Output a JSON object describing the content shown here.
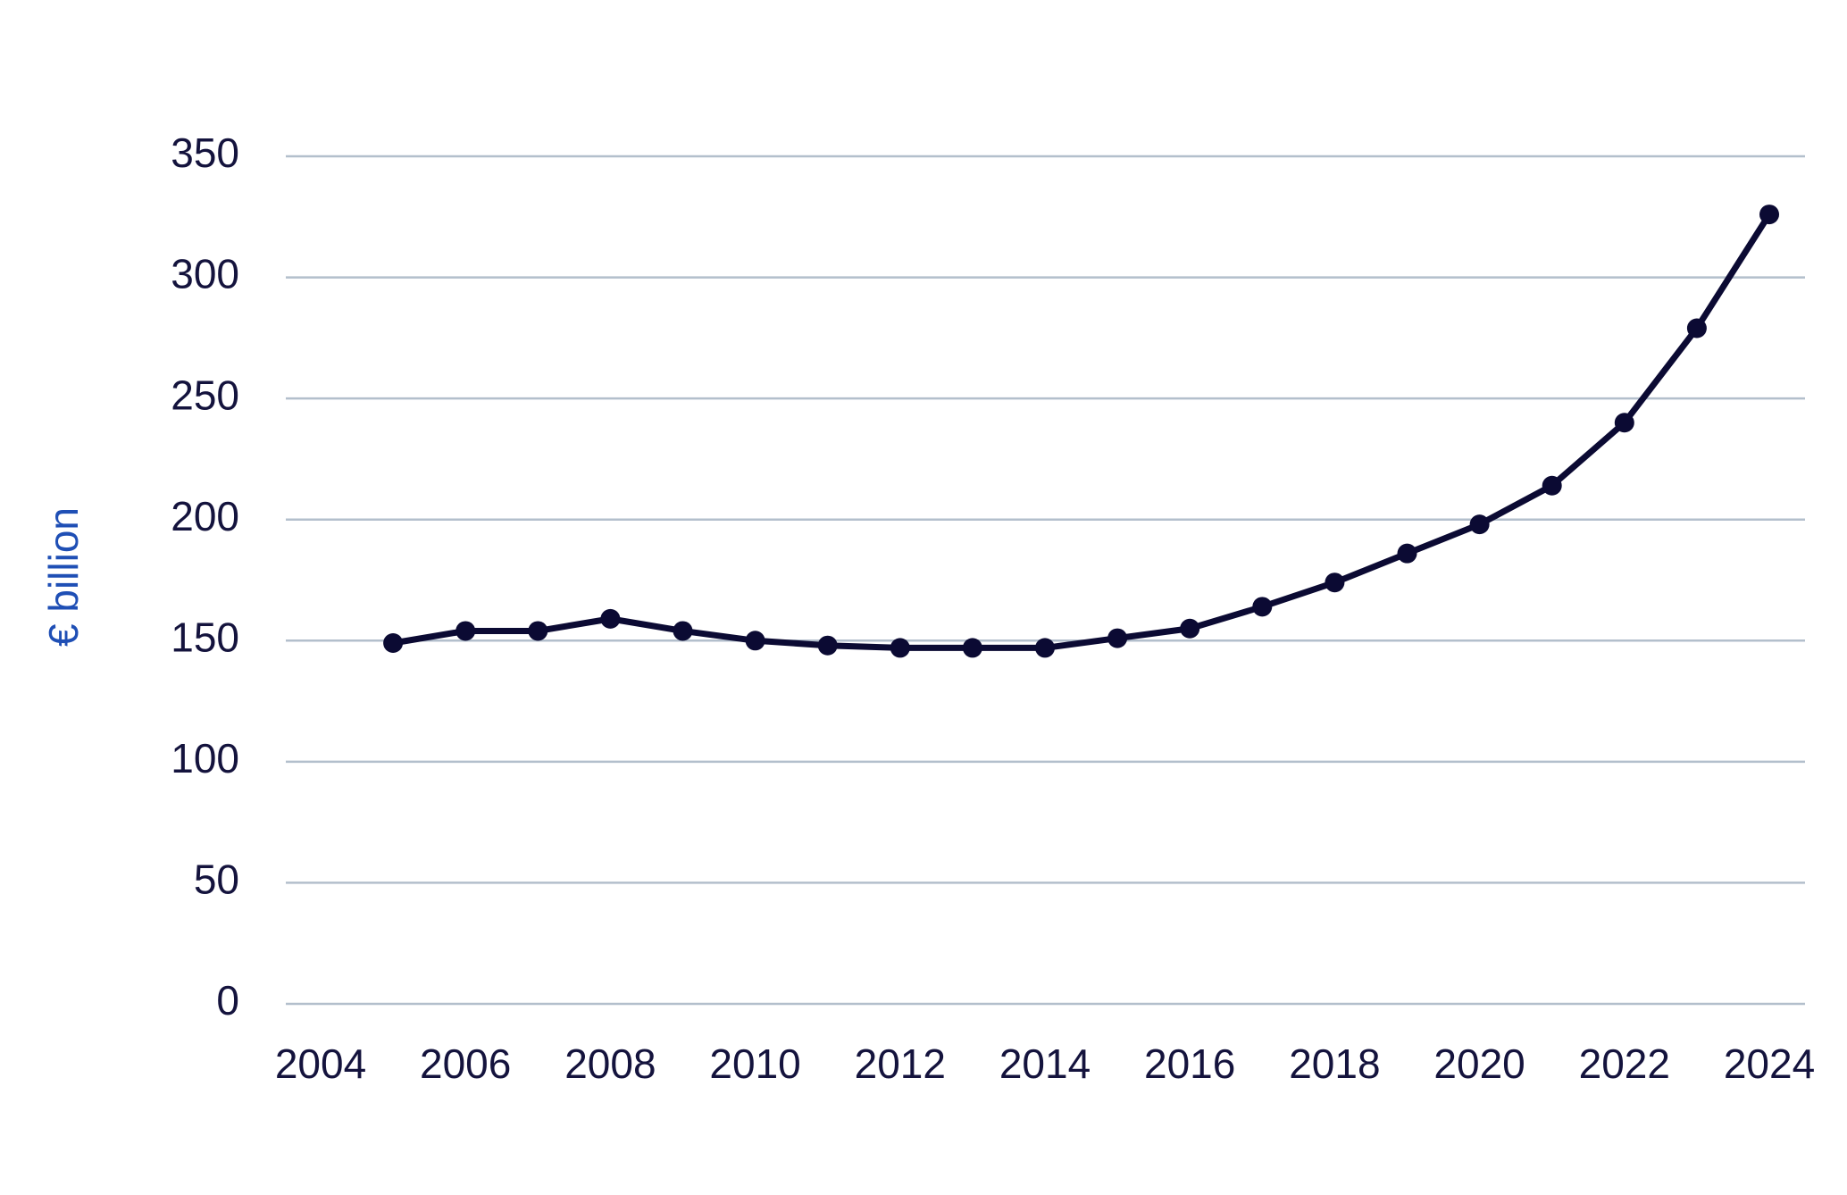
{
  "chart_data": {
    "type": "line",
    "y_label": "€ billion",
    "x": [
      2005,
      2006,
      2007,
      2008,
      2009,
      2010,
      2011,
      2012,
      2013,
      2014,
      2015,
      2016,
      2017,
      2018,
      2019,
      2020,
      2021,
      2022,
      2023,
      2024
    ],
    "series": [
      {
        "color": "#0b0a33",
        "values": [
          149,
          154,
          154,
          159,
          154,
          150,
          148,
          147,
          147,
          147,
          151,
          155,
          164,
          174,
          186,
          198,
          214,
          240,
          279,
          326
        ]
      }
    ],
    "xlim": [
      2004,
      2024
    ],
    "xticks": [
      2004,
      2006,
      2008,
      2010,
      2012,
      2014,
      2016,
      2018,
      2020,
      2022,
      2024
    ],
    "ylim": [
      0,
      350
    ],
    "yticks": [
      0,
      50,
      100,
      150,
      200,
      250,
      300,
      350
    ],
    "grid": true,
    "grid_color": "#b3bfcc",
    "y_label_color": "#1f4fb5",
    "markers": true
  }
}
